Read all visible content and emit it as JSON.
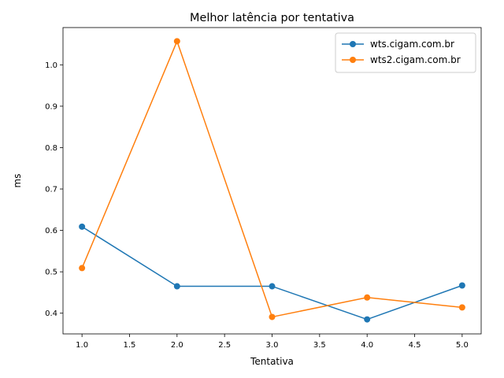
{
  "chart_data": {
    "type": "line",
    "title": "Melhor latência por tentativa",
    "xlabel": "Tentativa",
    "ylabel": "ms",
    "xlim": [
      0.8,
      5.2
    ],
    "ylim": [
      0.35,
      1.09
    ],
    "xticks": [
      1.0,
      1.5,
      2.0,
      2.5,
      3.0,
      3.5,
      4.0,
      4.5,
      5.0
    ],
    "xtick_labels": [
      "1.0",
      "1.5",
      "2.0",
      "2.5",
      "3.0",
      "3.5",
      "4.0",
      "4.5",
      "5.0"
    ],
    "yticks": [
      0.4,
      0.5,
      0.6,
      0.7,
      0.8,
      0.9,
      1.0
    ],
    "ytick_labels": [
      "0.4",
      "0.5",
      "0.6",
      "0.7",
      "0.8",
      "0.9",
      "1.0"
    ],
    "grid": false,
    "legend_position": "top-right",
    "series": [
      {
        "name": "wts.cigam.com.br",
        "color": "#1f77b4",
        "x": [
          1,
          2,
          3,
          4,
          5
        ],
        "y": [
          0.609,
          0.465,
          0.465,
          0.385,
          0.467
        ]
      },
      {
        "name": "wts2.cigam.com.br",
        "color": "#ff7f0e",
        "x": [
          1,
          2,
          3,
          4,
          5
        ],
        "y": [
          0.509,
          1.057,
          0.391,
          0.438,
          0.414
        ]
      }
    ]
  }
}
